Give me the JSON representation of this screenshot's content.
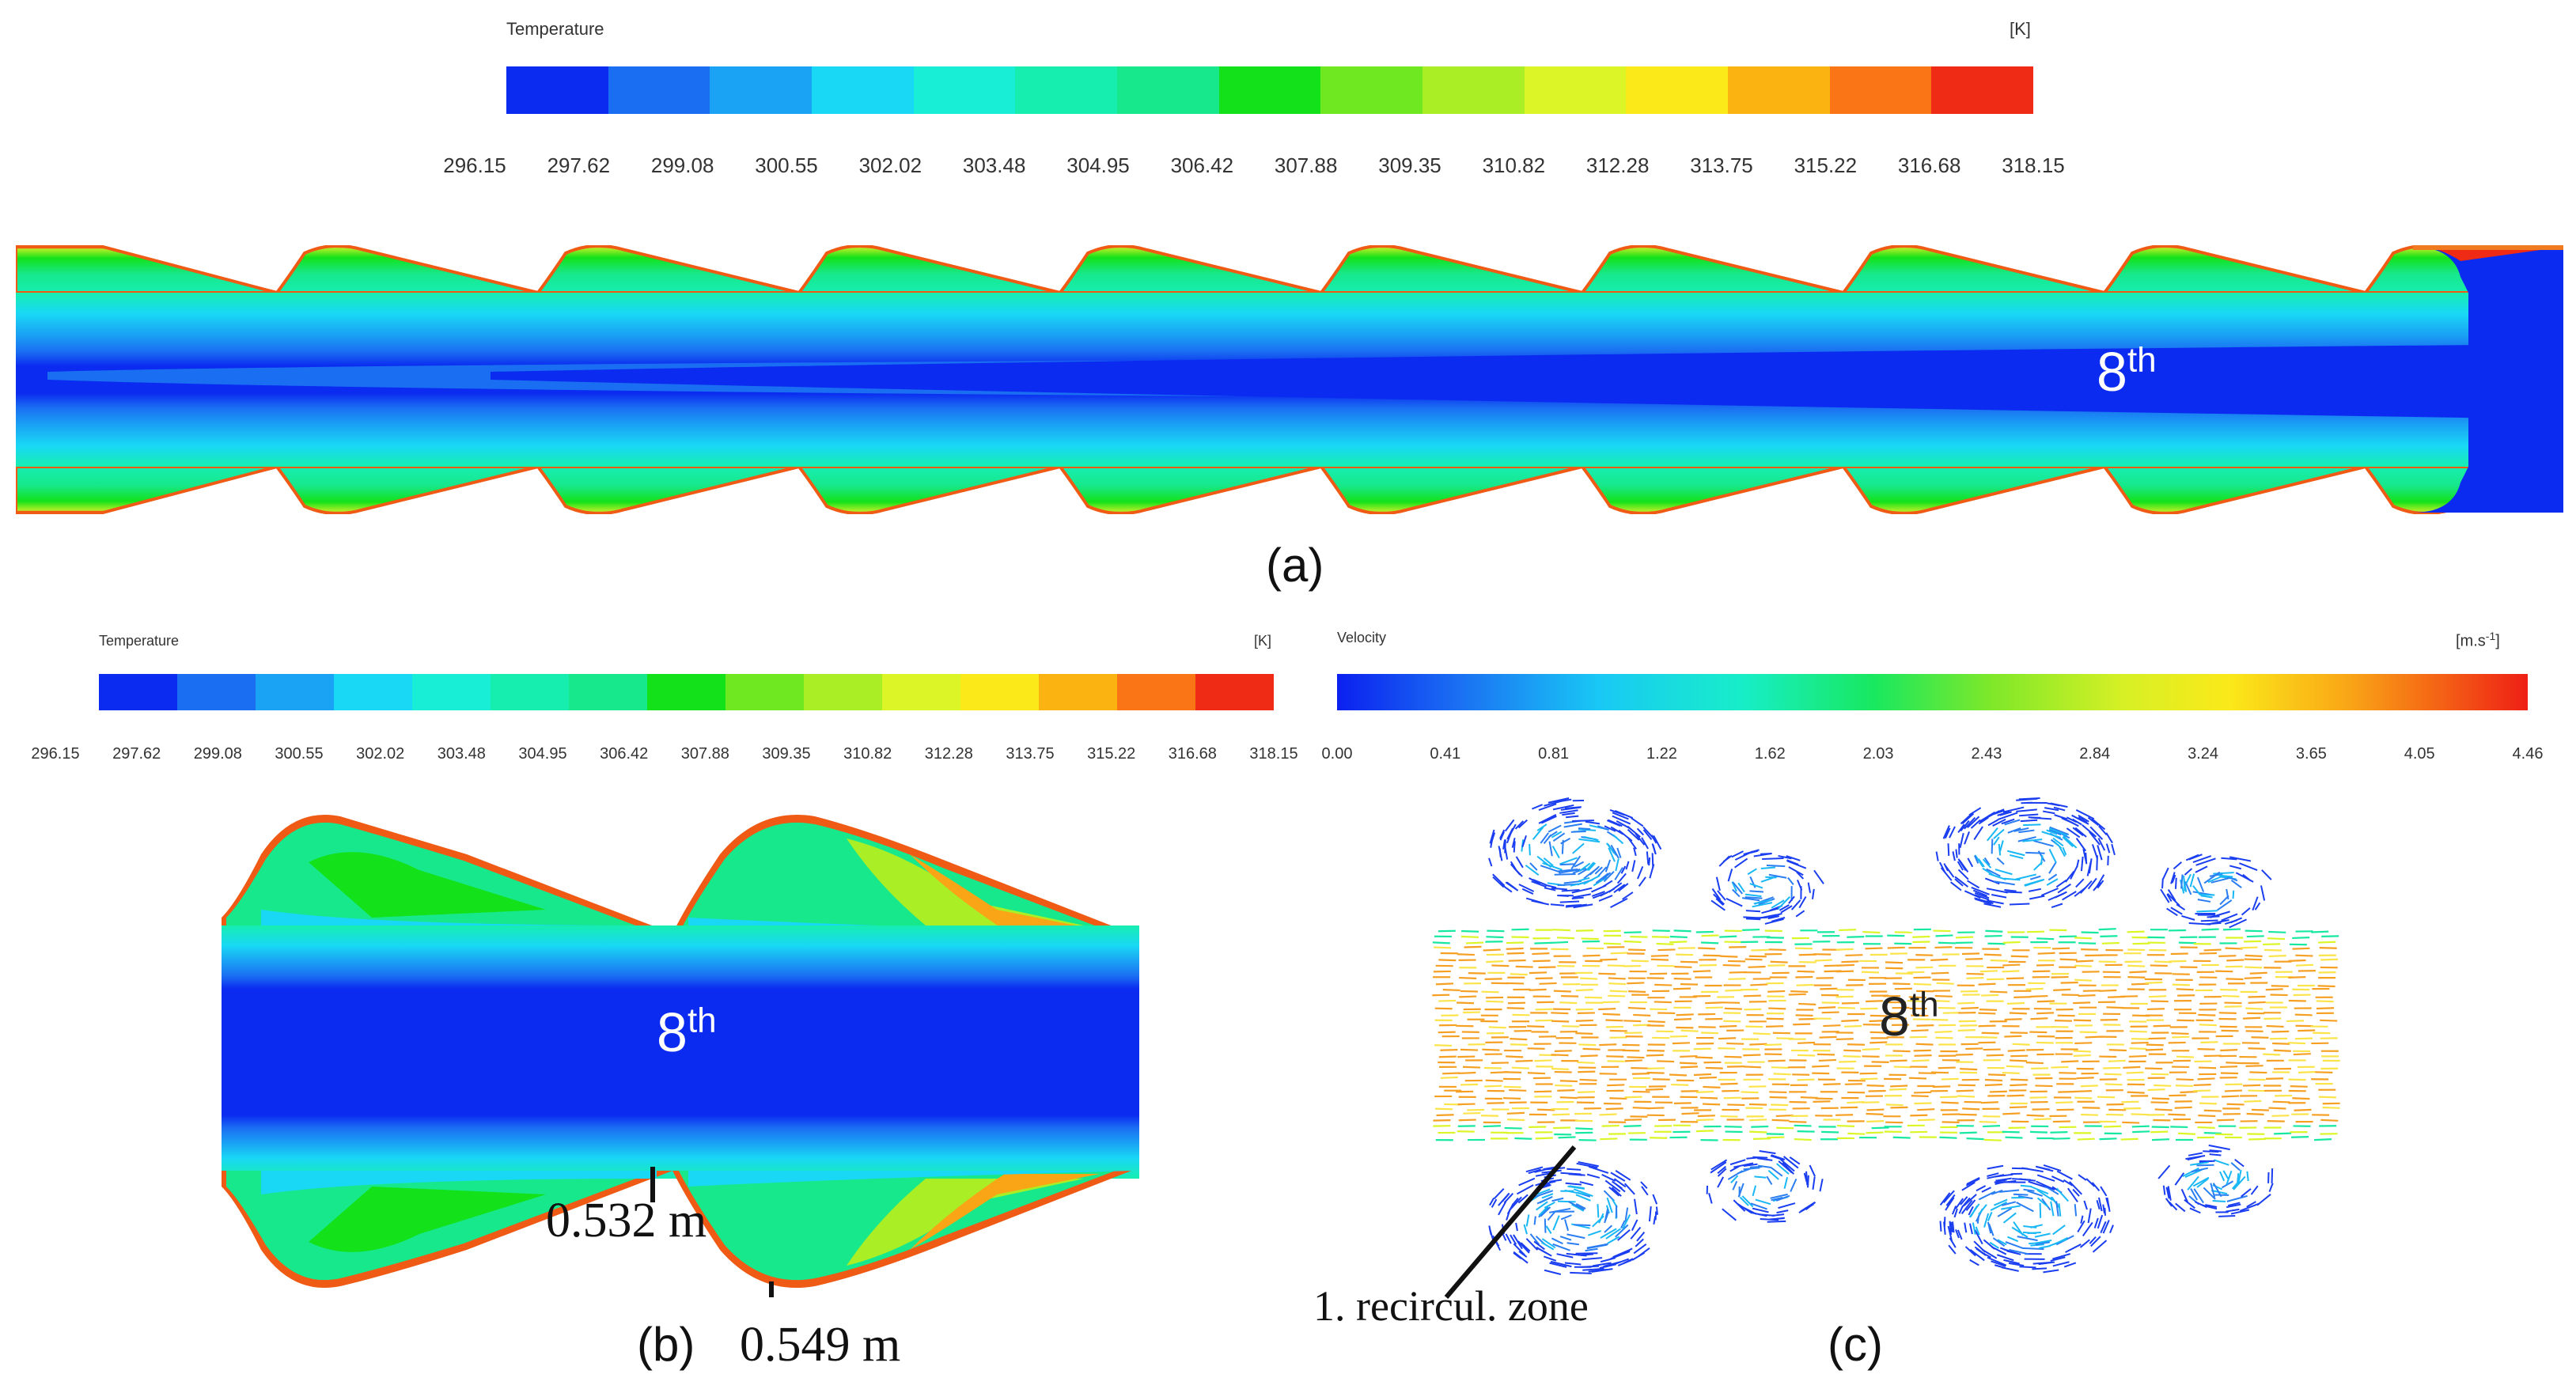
{
  "temperature_legend": {
    "title": "Temperature",
    "unit": "[K]",
    "ticks": [
      "296.15",
      "297.62",
      "299.08",
      "300.55",
      "302.02",
      "303.48",
      "304.95",
      "306.42",
      "307.88",
      "309.35",
      "310.82",
      "312.28",
      "313.75",
      "315.22",
      "316.68",
      "318.15"
    ],
    "colors": [
      "#0b2cf0",
      "#1a6ef2",
      "#1aa2f4",
      "#19d8f5",
      "#17eed5",
      "#16eeb0",
      "#17e88c",
      "#13e21a",
      "#6fe821",
      "#aaee26",
      "#dcf527",
      "#fbe919",
      "#fbb312",
      "#f97515",
      "#ef2a15"
    ]
  },
  "velocity_legend": {
    "title": "Velocity",
    "unit": "[m.s",
    "unit_exp": "-1",
    "unit_close": "]",
    "ticks": [
      "0.00",
      "0.41",
      "0.81",
      "1.22",
      "1.62",
      "2.03",
      "2.43",
      "2.84",
      "3.24",
      "3.65",
      "4.05",
      "4.46"
    ]
  },
  "panels": {
    "a": {
      "label": "(a)",
      "cell_marker": "8",
      "cell_marker_sup": "th"
    },
    "b": {
      "label": "(b)",
      "cell_marker": "8",
      "cell_marker_sup": "th",
      "dim_1": "0.532 m",
      "dim_2": "0.549 m"
    },
    "c": {
      "label": "(c)",
      "cell_marker": "8",
      "cell_marker_sup": "th",
      "annotation": "1. recircul. zone"
    }
  }
}
